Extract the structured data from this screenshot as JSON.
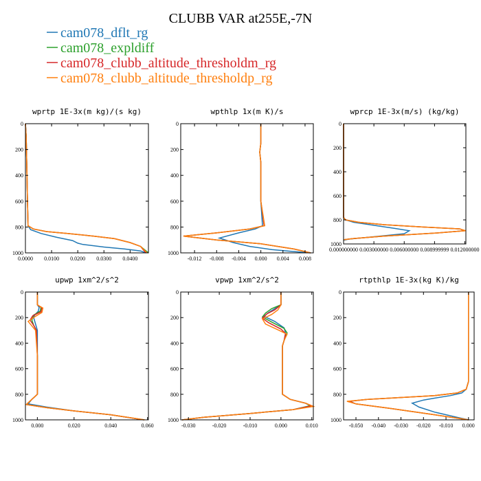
{
  "figure": {
    "title": "CLUBB VAR at255E,-7N"
  },
  "legend": [
    {
      "label": "cam078_dflt_rg",
      "color": "#1f77b4"
    },
    {
      "label": "cam078_expldiff",
      "color": "#2ca02c"
    },
    {
      "label": "cam078_clubb_altitude_thresholdm_rg",
      "color": "#d62728"
    },
    {
      "label": "cam078_clubb_altitude_thresholdp_rg",
      "color": "#ff7f0e"
    }
  ],
  "chart_data": [
    {
      "type": "line",
      "title": "wprtp  1E-3x(m kg)/(s kg)",
      "xlim": [
        0,
        0.047
      ],
      "ylim": [
        1000,
        0
      ],
      "xticks": [
        "0.0000",
        "0.0100",
        "0.0200",
        "0.0300",
        "0.0400"
      ],
      "xtick_values": [
        0,
        0.01,
        0.02,
        0.03,
        0.04
      ],
      "yticks": [
        "0",
        "200",
        "400",
        "600",
        "800",
        "1000"
      ],
      "ytick_values": [
        0,
        200,
        400,
        600,
        800,
        1000
      ],
      "series": [
        {
          "color": "#1f77b4",
          "x": [
            0,
            0.0003,
            0.0005,
            0.0008,
            0.001,
            0.002,
            0.006,
            0.012,
            0.018,
            0.02,
            0.022,
            0.03,
            0.038,
            0.044,
            0.046
          ],
          "y": [
            0,
            100,
            300,
            600,
            790,
            820,
            850,
            880,
            905,
            925,
            935,
            955,
            970,
            985,
            1000
          ]
        },
        {
          "color": "#2ca02c",
          "x": [
            0,
            0.0003,
            0.0005,
            0.0008,
            0.001,
            0.003,
            0.008,
            0.016,
            0.026,
            0.034,
            0.04,
            0.044,
            0.047
          ],
          "y": [
            0,
            100,
            300,
            600,
            790,
            815,
            835,
            850,
            870,
            890,
            920,
            950,
            1000
          ]
        },
        {
          "color": "#d62728",
          "x": [
            0,
            0.0003,
            0.0005,
            0.0008,
            0.001,
            0.003,
            0.008,
            0.016,
            0.026,
            0.034,
            0.04,
            0.044,
            0.046
          ],
          "y": [
            0,
            100,
            300,
            600,
            790,
            815,
            835,
            850,
            870,
            890,
            920,
            950,
            1000
          ]
        },
        {
          "color": "#ff7f0e",
          "x": [
            0,
            0.0003,
            0.0005,
            0.0008,
            0.001,
            0.003,
            0.008,
            0.016,
            0.026,
            0.034,
            0.04,
            0.044,
            0.0465
          ],
          "y": [
            0,
            100,
            300,
            600,
            790,
            815,
            835,
            850,
            870,
            890,
            920,
            950,
            1000
          ]
        }
      ]
    },
    {
      "type": "line",
      "title": "wpthlp  1x(m K)/s",
      "xlim": [
        -0.0145,
        0.0095
      ],
      "ylim": [
        1000,
        0
      ],
      "xticks": [
        "-0.012",
        "-0.008",
        "-0.004",
        "0.000",
        "0.004",
        "0.008"
      ],
      "xtick_values": [
        -0.012,
        -0.008,
        -0.004,
        0,
        0.004,
        0.008
      ],
      "yticks": [
        "0",
        "200",
        "400",
        "600",
        "800",
        "1000"
      ],
      "ytick_values": [
        0,
        200,
        400,
        600,
        800,
        1000
      ],
      "series": [
        {
          "color": "#1f77b4",
          "x": [
            0,
            0,
            -0.0002,
            0,
            0,
            0.0003,
            -0.001,
            -0.004,
            -0.0075,
            -0.005,
            -0.002,
            0.002,
            0.006,
            0.009
          ],
          "y": [
            0,
            150,
            220,
            300,
            600,
            790,
            815,
            845,
            885,
            920,
            950,
            975,
            990,
            1000
          ]
        },
        {
          "color": "#2ca02c",
          "x": [
            0,
            0,
            -0.0002,
            0,
            0,
            0.0006,
            -0.002,
            -0.008,
            -0.014,
            -0.008,
            0,
            0.006,
            0.009
          ],
          "y": [
            0,
            150,
            220,
            300,
            600,
            790,
            815,
            845,
            870,
            900,
            930,
            970,
            1000
          ]
        },
        {
          "color": "#d62728",
          "x": [
            0,
            0,
            -0.0002,
            0,
            0,
            0.0006,
            -0.002,
            -0.008,
            -0.014,
            -0.008,
            0,
            0.006,
            0.009
          ],
          "y": [
            0,
            150,
            220,
            300,
            600,
            790,
            815,
            845,
            870,
            900,
            930,
            970,
            1000
          ]
        },
        {
          "color": "#ff7f0e",
          "x": [
            0,
            0,
            -0.0002,
            0,
            0,
            0.0007,
            -0.002,
            -0.008,
            -0.014,
            -0.008,
            0,
            0.006,
            0.009
          ],
          "y": [
            0,
            150,
            220,
            300,
            600,
            790,
            815,
            845,
            870,
            900,
            930,
            970,
            1000
          ]
        }
      ]
    },
    {
      "type": "line",
      "title": "wprcp  1E-3x(m/s) (kg/kg)",
      "xlim": [
        0,
        0.0121
      ],
      "ylim": [
        1000,
        0
      ],
      "xticks": [
        "0.000000000",
        "0.003000000",
        "0.006000000",
        "0.008999999",
        "0.012000000"
      ],
      "xtick_values": [
        0,
        0.003,
        0.006,
        0.009,
        0.012
      ],
      "yticks": [
        "0",
        "200",
        "400",
        "600",
        "800",
        "1000"
      ],
      "ytick_values": [
        0,
        200,
        400,
        600,
        800,
        1000
      ],
      "series": [
        {
          "color": "#1f77b4",
          "x": [
            0,
            0,
            0.0002,
            0.001,
            0.003,
            0.005,
            0.0065,
            0.006,
            0.003,
            0.0005,
            0
          ],
          "y": [
            0,
            780,
            800,
            820,
            845,
            870,
            890,
            915,
            940,
            960,
            970
          ]
        },
        {
          "color": "#2ca02c",
          "x": [
            0,
            0,
            0.0002,
            0.0015,
            0.004,
            0.008,
            0.0115,
            0.012,
            0.009,
            0.004,
            0.001,
            0
          ],
          "y": [
            0,
            780,
            800,
            820,
            840,
            860,
            875,
            890,
            910,
            935,
            955,
            965
          ]
        },
        {
          "color": "#d62728",
          "x": [
            0,
            0,
            0.0002,
            0.0015,
            0.004,
            0.008,
            0.0115,
            0.012,
            0.009,
            0.004,
            0.001,
            0
          ],
          "y": [
            0,
            780,
            800,
            820,
            840,
            860,
            875,
            890,
            910,
            935,
            955,
            965
          ]
        },
        {
          "color": "#ff7f0e",
          "x": [
            0,
            0,
            0.0002,
            0.0015,
            0.004,
            0.008,
            0.0115,
            0.0121,
            0.009,
            0.004,
            0.001,
            0
          ],
          "y": [
            0,
            780,
            800,
            820,
            840,
            860,
            875,
            890,
            910,
            935,
            955,
            965
          ]
        }
      ]
    },
    {
      "type": "line",
      "title": "upwp  1xm^2/s^2",
      "xlim": [
        -0.0065,
        0.0605
      ],
      "ylim": [
        1000,
        0
      ],
      "xticks": [
        "0.000",
        "0.020",
        "0.040",
        "0.060"
      ],
      "xtick_values": [
        0,
        0.02,
        0.04,
        0.06
      ],
      "yticks": [
        "0",
        "200",
        "400",
        "600",
        "800",
        "1000"
      ],
      "ytick_values": [
        0,
        200,
        400,
        600,
        800,
        1000
      ],
      "series": [
        {
          "color": "#1f77b4",
          "x": [
            0,
            0,
            0.001,
            0.0005,
            -0.0015,
            -0.002,
            -0.001,
            0,
            0,
            0,
            -0.003,
            -0.005,
            0.005,
            0.02,
            0.04,
            0.058
          ],
          "y": [
            0,
            100,
            120,
            150,
            180,
            200,
            250,
            300,
            500,
            800,
            840,
            875,
            900,
            930,
            960,
            1000
          ]
        },
        {
          "color": "#2ca02c",
          "x": [
            0,
            0,
            0.002,
            0.0015,
            -0.002,
            -0.003,
            -0.002,
            -0.0005,
            0,
            0,
            -0.003,
            -0.006,
            0.005,
            0.02,
            0.04,
            0.058
          ],
          "y": [
            0,
            100,
            120,
            150,
            180,
            220,
            260,
            300,
            500,
            800,
            840,
            880,
            905,
            930,
            960,
            1000
          ]
        },
        {
          "color": "#d62728",
          "x": [
            0,
            0,
            0.0025,
            0.002,
            -0.0025,
            -0.004,
            -0.002,
            -0.0005,
            0,
            0,
            -0.003,
            -0.006,
            0.005,
            0.02,
            0.04,
            0.058
          ],
          "y": [
            0,
            100,
            125,
            155,
            185,
            220,
            260,
            300,
            500,
            800,
            840,
            880,
            905,
            930,
            960,
            1000
          ]
        },
        {
          "color": "#ff7f0e",
          "x": [
            0,
            0,
            0.003,
            0.0025,
            -0.001,
            -0.005,
            -0.003,
            -0.001,
            0,
            0,
            -0.003,
            -0.006,
            0.005,
            0.02,
            0.04,
            0.0585
          ],
          "y": [
            0,
            100,
            125,
            160,
            190,
            230,
            265,
            300,
            500,
            800,
            840,
            880,
            905,
            930,
            960,
            1000
          ]
        }
      ]
    },
    {
      "type": "line",
      "title": "vpwp  1xm^2/s^2",
      "xlim": [
        -0.0325,
        0.0105
      ],
      "ylim": [
        1000,
        0
      ],
      "xticks": [
        "-0.030",
        "-0.020",
        "-0.010",
        "0.000",
        "0.010"
      ],
      "xtick_values": [
        -0.03,
        -0.02,
        -0.01,
        0,
        0.01
      ],
      "yticks": [
        "0",
        "200",
        "400",
        "600",
        "800",
        "1000"
      ],
      "ytick_values": [
        0,
        200,
        400,
        600,
        800,
        1000
      ],
      "series": [
        {
          "color": "#1f77b4",
          "x": [
            0,
            0,
            -0.002,
            -0.004,
            -0.0055,
            -0.002,
            0.001,
            0.0015,
            0.001,
            0.0005,
            0.0005,
            0.0005,
            0.003,
            0.008,
            0.0095,
            0.004,
            -0.01,
            -0.025,
            -0.032
          ],
          "y": [
            0,
            100,
            130,
            160,
            190,
            230,
            280,
            320,
            380,
            420,
            600,
            800,
            840,
            870,
            890,
            920,
            950,
            980,
            1000
          ]
        },
        {
          "color": "#2ca02c",
          "x": [
            0,
            0,
            -0.003,
            -0.005,
            -0.006,
            -0.003,
            0.001,
            0.002,
            0.001,
            0.0005,
            0.0005,
            0.0005,
            0.003,
            0.008,
            0.0095,
            0.004,
            -0.01,
            -0.025,
            -0.032
          ],
          "y": [
            0,
            100,
            130,
            165,
            195,
            235,
            285,
            320,
            380,
            420,
            600,
            800,
            840,
            870,
            890,
            920,
            950,
            980,
            1000
          ]
        },
        {
          "color": "#d62728",
          "x": [
            0,
            0,
            -0.002,
            -0.0045,
            -0.006,
            -0.004,
            0,
            0.0015,
            0.001,
            0.0005,
            0.0005,
            0.0005,
            0.003,
            0.008,
            0.01,
            0.004,
            -0.01,
            -0.025,
            -0.032
          ],
          "y": [
            0,
            100,
            140,
            170,
            205,
            240,
            290,
            325,
            380,
            420,
            600,
            800,
            840,
            870,
            890,
            920,
            950,
            980,
            1000
          ]
        },
        {
          "color": "#ff7f0e",
          "x": [
            0,
            0,
            -0.001,
            -0.003,
            -0.006,
            -0.005,
            -0.001,
            0.002,
            0.001,
            0.0005,
            0.0005,
            0.0005,
            0.003,
            0.008,
            0.0105,
            0.004,
            -0.01,
            -0.025,
            -0.032
          ],
          "y": [
            0,
            100,
            140,
            175,
            210,
            250,
            295,
            330,
            380,
            420,
            600,
            800,
            840,
            870,
            895,
            920,
            950,
            980,
            1000
          ]
        }
      ]
    },
    {
      "type": "line",
      "title": "rtpthlp  1E-3x(kg K)/kg",
      "xlim": [
        -0.0555,
        0.0025
      ],
      "ylim": [
        1000,
        0
      ],
      "xticks": [
        "-0.050",
        "-0.040",
        "-0.030",
        "-0.020",
        "-0.010",
        "0.000"
      ],
      "xtick_values": [
        -0.05,
        -0.04,
        -0.03,
        -0.02,
        -0.01,
        0
      ],
      "yticks": [
        "0",
        "200",
        "400",
        "600",
        "800",
        "1000"
      ],
      "ytick_values": [
        0,
        200,
        400,
        600,
        800,
        1000
      ],
      "series": [
        {
          "color": "#1f77b4",
          "x": [
            0,
            0,
            -0.001,
            -0.003,
            -0.008,
            -0.015,
            -0.02,
            -0.025,
            -0.022,
            -0.015,
            -0.005,
            0
          ],
          "y": [
            0,
            700,
            760,
            790,
            810,
            830,
            845,
            870,
            900,
            940,
            980,
            1000
          ]
        },
        {
          "color": "#2ca02c",
          "x": [
            0,
            0,
            -0.001,
            -0.005,
            -0.015,
            -0.03,
            -0.045,
            -0.053,
            -0.05,
            -0.035,
            -0.015,
            0
          ],
          "y": [
            0,
            700,
            760,
            790,
            810,
            825,
            840,
            855,
            875,
            910,
            960,
            1000
          ]
        },
        {
          "color": "#d62728",
          "x": [
            0,
            0,
            -0.001,
            -0.005,
            -0.015,
            -0.03,
            -0.045,
            -0.053,
            -0.05,
            -0.035,
            -0.015,
            0
          ],
          "y": [
            0,
            700,
            760,
            790,
            810,
            825,
            840,
            855,
            875,
            910,
            960,
            1000
          ]
        },
        {
          "color": "#ff7f0e",
          "x": [
            0,
            0,
            -0.001,
            -0.005,
            -0.015,
            -0.03,
            -0.045,
            -0.054,
            -0.05,
            -0.035,
            -0.015,
            0
          ],
          "y": [
            0,
            700,
            760,
            790,
            810,
            825,
            840,
            855,
            875,
            910,
            960,
            1000
          ]
        }
      ]
    }
  ]
}
